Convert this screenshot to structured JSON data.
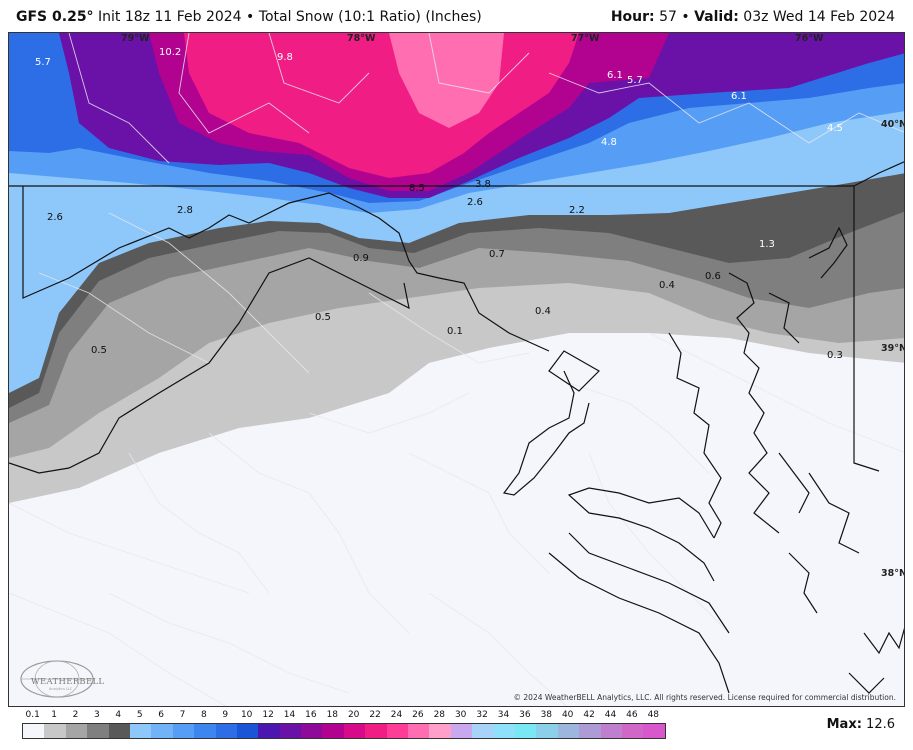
{
  "header": {
    "model": "GFS 0.25°",
    "init": "Init 18z 11 Feb 2024",
    "separator": "•",
    "product": "Total Snow (10:1 Ratio) (Inches)",
    "hour_label": "Hour:",
    "hour_value": "57",
    "valid_label": "Valid:",
    "valid_value": "03z Wed 14 Feb 2024"
  },
  "map": {
    "longitude_labels": [
      "79°W",
      "78°W",
      "77°W",
      "76°W"
    ],
    "latitude_labels": [
      "40°N",
      "39°N",
      "38°N"
    ],
    "snow_labels": [
      "5.7",
      "10.2",
      "9.8",
      "6.1",
      "5.7",
      "6.1",
      "4.5",
      "4.8",
      "8.5",
      "3.8",
      "2.6",
      "2.2",
      "2.6",
      "2.8",
      "0.9",
      "0.7",
      "1.3",
      "0.6",
      "0.4",
      "0.5",
      "0.1",
      "0.4",
      "0.5",
      "0.3"
    ],
    "copyright": "© 2024 WeatherBELL Analytics, LLC. All rights reserved. License required for commercial distribution.",
    "logo_text": "WEATHERBELL",
    "logo_subtext": "Analytics LLC"
  },
  "legend": {
    "ticks": [
      "0.1",
      "1",
      "2",
      "3",
      "4",
      "5",
      "6",
      "7",
      "8",
      "9",
      "10",
      "12",
      "14",
      "16",
      "18",
      "20",
      "22",
      "24",
      "26",
      "28",
      "30",
      "32",
      "34",
      "36",
      "38",
      "40",
      "42",
      "44",
      "46",
      "48"
    ],
    "colors": [
      "#f4f6fb",
      "#c8c8c8",
      "#a5a5a5",
      "#7f7f7f",
      "#595959",
      "#8ec8fa",
      "#72b2f7",
      "#569ef5",
      "#3d86f0",
      "#2d6ee6",
      "#1a55d8",
      "#4b17b0",
      "#6a11a8",
      "#8d0a9b",
      "#b10390",
      "#d70a89",
      "#f01d85",
      "#ff3c96",
      "#ff6eb1",
      "#ff9fca",
      "#c9a8f0",
      "#a8d3f9",
      "#8fe0fb",
      "#7ae8f4",
      "#8bd0e8",
      "#9db6de",
      "#ae9ad4",
      "#c07fce",
      "#d067c8",
      "#d857cc"
    ],
    "max_label": "Max:",
    "max_value": "12.6"
  }
}
